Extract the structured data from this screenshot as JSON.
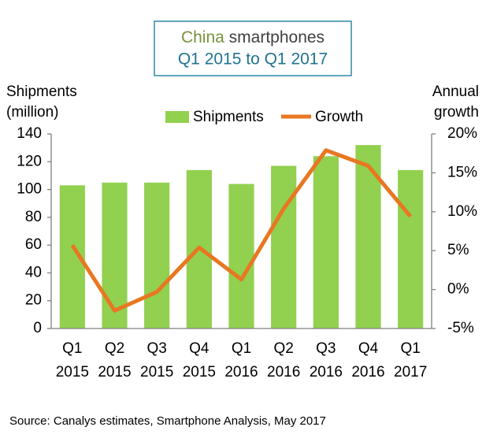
{
  "chart_data": {
    "type": "bar_line",
    "title": [
      "China",
      "smartphones"
    ],
    "subtitle": "Q1 2015 to Q1 2017",
    "ylabel": [
      "Shipments",
      "(million)"
    ],
    "y2label": [
      "Annual",
      "growth"
    ],
    "categories": [
      [
        "Q1",
        "2015"
      ],
      [
        "Q2",
        "2015"
      ],
      [
        "Q3",
        "2015"
      ],
      [
        "Q4",
        "2015"
      ],
      [
        "Q1",
        "2016"
      ],
      [
        "Q2",
        "2016"
      ],
      [
        "Q3",
        "2016"
      ],
      [
        "Q4",
        "2016"
      ],
      [
        "Q1",
        "2017"
      ]
    ],
    "series": [
      {
        "name": "Shipments",
        "type": "bar",
        "color": "#92d050",
        "values": [
          103,
          105,
          105,
          114,
          104,
          117,
          124,
          132,
          114
        ]
      },
      {
        "name": "Growth",
        "type": "line",
        "axis": "y2",
        "color": "#e87722",
        "values": [
          5.7,
          -2.7,
          -0.3,
          5.4,
          1.3,
          10.4,
          17.9,
          15.9,
          9.4
        ]
      }
    ],
    "ylim": [
      0,
      140
    ],
    "yticks": [
      0,
      20,
      40,
      60,
      80,
      100,
      120,
      140
    ],
    "y2lim": [
      -5,
      20
    ],
    "y2ticks": [
      {
        "value": -5,
        "label": "-5%"
      },
      {
        "value": 0,
        "label": "0%"
      },
      {
        "value": 5,
        "label": "5%"
      },
      {
        "value": 10,
        "label": "10%"
      },
      {
        "value": 15,
        "label": "15%"
      },
      {
        "value": 20,
        "label": "20%"
      }
    ],
    "source": "Source: Canalys estimates, Smartphone Analysis, May 2017"
  }
}
